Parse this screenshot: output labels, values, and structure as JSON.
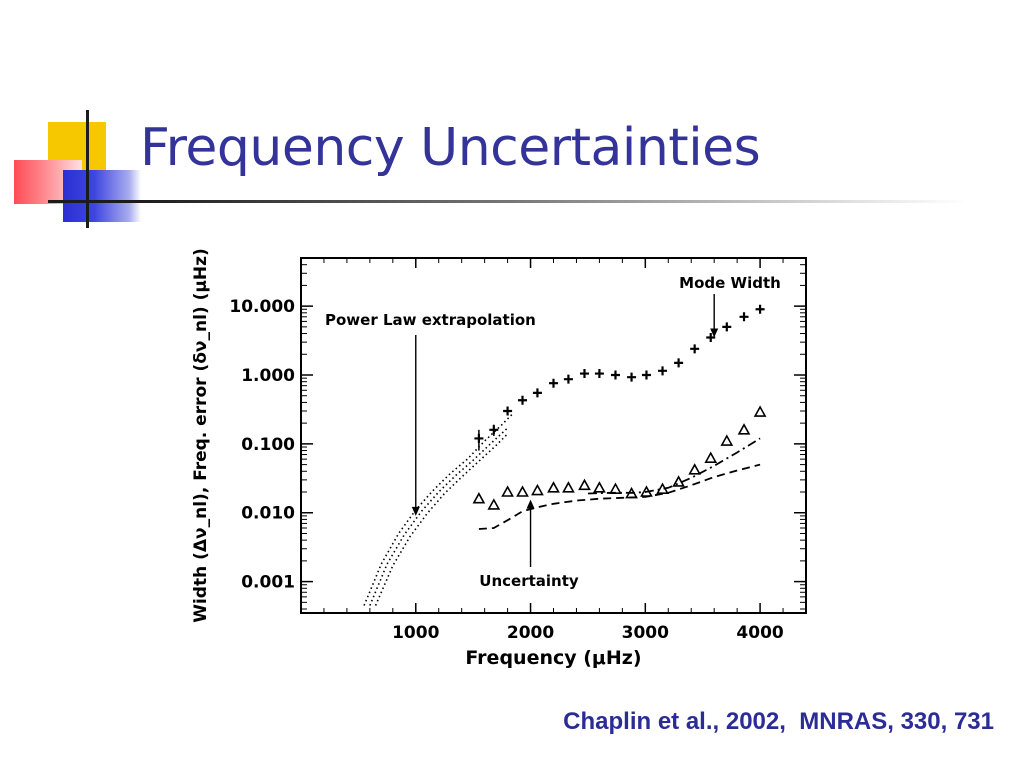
{
  "slide": {
    "title": "Frequency Uncertainties",
    "citation": "Chaplin et al., 2002,  MNRAS, 330, 731",
    "title_color": "#33339a",
    "citation_color": "#2c2c96",
    "accent_colors": {
      "yellow": "#f5c800",
      "red": "#ff4b55",
      "blue": "#2b2fd3"
    }
  },
  "chart_data": {
    "type": "scatter",
    "title": "",
    "xlabel": "Frequency (μHz)",
    "ylabel": "Width (Δν_nl), Freq. error (δν_nl) (μHz)",
    "xlim": [
      0,
      4400
    ],
    "ylim": [
      0.00035,
      50
    ],
    "yscale": "log",
    "grid": false,
    "x_ticks": [
      {
        "value": 1000,
        "label": "1000"
      },
      {
        "value": 2000,
        "label": "2000"
      },
      {
        "value": 3000,
        "label": "3000"
      },
      {
        "value": 4000,
        "label": "4000"
      }
    ],
    "y_ticks": [
      {
        "value": 0.001,
        "label": "0.001"
      },
      {
        "value": 0.01,
        "label": "0.010"
      },
      {
        "value": 0.1,
        "label": "0.100"
      },
      {
        "value": 1,
        "label": "1.000"
      },
      {
        "value": 10,
        "label": "10.000"
      }
    ],
    "annotations": [
      {
        "text": "Mode Width",
        "arrow_to": [
          3600,
          3.5
        ]
      },
      {
        "text": "Power Law extrapolation",
        "arrow_to": [
          1000,
          0.009
        ]
      },
      {
        "text": "Uncertainty",
        "arrow_to": [
          2000,
          0.0155
        ]
      }
    ],
    "series": [
      {
        "marker": "plus",
        "x": [
          1550,
          1680,
          1800,
          1930,
          2060,
          2200,
          2330,
          2470,
          2600,
          2740,
          2880,
          3010,
          3150,
          3290,
          3430,
          3570,
          3710,
          3860,
          4000
        ],
        "y": [
          0.12,
          0.16,
          0.3,
          0.43,
          0.55,
          0.76,
          0.87,
          1.05,
          1.05,
          1.0,
          0.93,
          1.0,
          1.15,
          1.5,
          2.4,
          3.5,
          5.0,
          7.0,
          9.0
        ],
        "errors": [
          0.04,
          0.03,
          0.03,
          0.04,
          0.05,
          0.06,
          0.06,
          0.08,
          0.07,
          0.07,
          0.06,
          0.07,
          0.08,
          0.1,
          0.15,
          0.2,
          0.3,
          0.4,
          0.5
        ]
      },
      {
        "marker": "triangle",
        "x": [
          1550,
          1680,
          1800,
          1930,
          2060,
          2200,
          2330,
          2470,
          2600,
          2740,
          2880,
          3010,
          3150,
          3290,
          3430,
          3570,
          3710,
          3860,
          4000
        ],
        "y": [
          0.016,
          0.013,
          0.02,
          0.02,
          0.021,
          0.023,
          0.023,
          0.025,
          0.023,
          0.022,
          0.019,
          0.02,
          0.022,
          0.028,
          0.042,
          0.062,
          0.11,
          0.16,
          0.29
        ]
      },
      {
        "line": "dotted",
        "x": [
          550,
          700,
          850,
          1000,
          1150,
          1300,
          1450,
          1600,
          1750,
          1850
        ],
        "y": [
          0.00045,
          0.0018,
          0.005,
          0.011,
          0.021,
          0.037,
          0.06,
          0.11,
          0.19,
          0.28
        ]
      },
      {
        "line": "dotted",
        "x": [
          600,
          750,
          900,
          1050,
          1200,
          1350,
          1500,
          1650,
          1800
        ],
        "y": [
          0.00045,
          0.0018,
          0.0048,
          0.0105,
          0.02,
          0.035,
          0.058,
          0.1,
          0.17
        ]
      },
      {
        "line": "dotted",
        "x": [
          650,
          800,
          950,
          1100,
          1250,
          1400,
          1550,
          1700,
          1800
        ],
        "y": [
          0.00045,
          0.0017,
          0.0045,
          0.0098,
          0.019,
          0.033,
          0.056,
          0.095,
          0.14
        ]
      },
      {
        "line": "dashed",
        "x": [
          1550,
          1680,
          1800,
          1930,
          2060,
          2200,
          2400,
          2600,
          2800,
          3000,
          3200,
          3400,
          3600,
          3800,
          4000
        ],
        "y": [
          0.0058,
          0.006,
          0.0078,
          0.0105,
          0.012,
          0.0135,
          0.015,
          0.016,
          0.0165,
          0.017,
          0.0195,
          0.025,
          0.033,
          0.041,
          0.05
        ]
      },
      {
        "line": "dashdot",
        "x": [
          2500,
          2700,
          2900,
          3000,
          3200,
          3400,
          3600,
          3800,
          4000
        ],
        "y": [
          0.019,
          0.0195,
          0.0195,
          0.02,
          0.023,
          0.032,
          0.048,
          0.075,
          0.12
        ]
      }
    ]
  }
}
